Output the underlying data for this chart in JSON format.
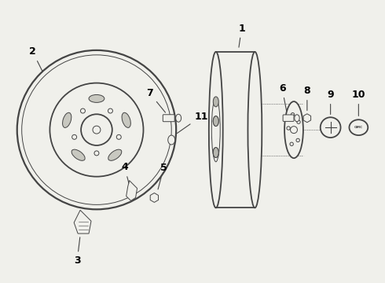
{
  "background_color": "#f0f0eb",
  "line_color": "#444444",
  "label_color": "#000000",
  "figsize": [
    4.9,
    3.6
  ],
  "dpi": 100
}
